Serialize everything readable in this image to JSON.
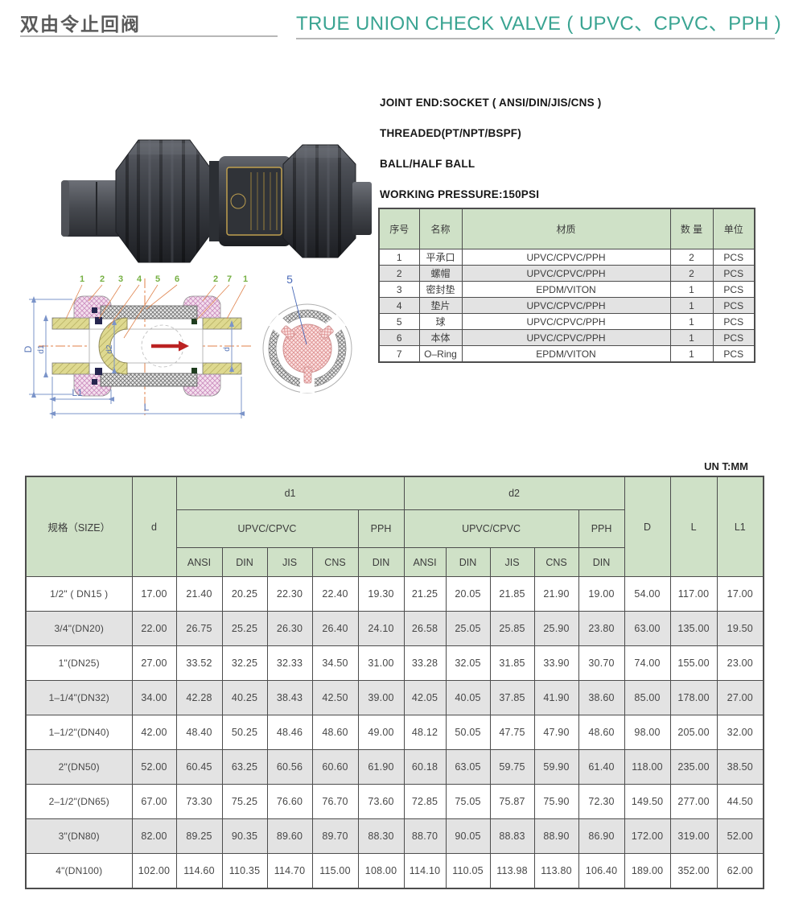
{
  "header": {
    "title_cn": "双由令止回阀",
    "title_en": "TRUE UNION CHECK VALVE ( UPVC、CPVC、PPH )"
  },
  "specs": {
    "line1": "JOINT END:SOCKET ( ANSI/DIN/JIS/CNS )",
    "line2": "THREADED(PT/NPT/BSPF)",
    "line3": "BALL/HALF BALL",
    "line4": "WORKING PRESSURE:150PSI"
  },
  "parts_table": {
    "headers": [
      "序号",
      "名称",
      "材质",
      "数 量",
      "单位"
    ],
    "rows": [
      [
        "1",
        "平承口",
        "UPVC/CPVC/PPH",
        "2",
        "PCS"
      ],
      [
        "2",
        "螺帽",
        "UPVC/CPVC/PPH",
        "2",
        "PCS"
      ],
      [
        "3",
        "密封垫",
        "EPDM/VITON",
        "1",
        "PCS"
      ],
      [
        "4",
        "垫片",
        "UPVC/CPVC/PPH",
        "1",
        "PCS"
      ],
      [
        "5",
        "球",
        "UPVC/CPVC/PPH",
        "1",
        "PCS"
      ],
      [
        "6",
        "本体",
        "UPVC/CPVC/PPH",
        "1",
        "PCS"
      ],
      [
        "7",
        "O–Ring",
        "EPDM/VITON",
        "1",
        "PCS"
      ]
    ]
  },
  "dimension_table": {
    "unit_note": "UN T:MM",
    "col_size": "规格（SIZE）",
    "col_d": "d",
    "group_d1": "d1",
    "group_d2": "d2",
    "material_upvc": "UPVC/CPVC",
    "material_pph": "PPH",
    "standards": [
      "ANSI",
      "DIN",
      "JIS",
      "CNS",
      "DIN"
    ],
    "col_D": "D",
    "col_L": "L",
    "col_L1": "L1",
    "rows": [
      {
        "size": "1/2\" ( DN15 )",
        "d": "17.00",
        "d1": [
          "21.40",
          "20.25",
          "22.30",
          "22.40",
          "19.30"
        ],
        "d2": [
          "21.25",
          "20.05",
          "21.85",
          "21.90",
          "19.00"
        ],
        "D": "54.00",
        "L": "117.00",
        "L1": "17.00"
      },
      {
        "size": "3/4\"(DN20)",
        "d": "22.00",
        "d1": [
          "26.75",
          "25.25",
          "26.30",
          "26.40",
          "24.10"
        ],
        "d2": [
          "26.58",
          "25.05",
          "25.85",
          "25.90",
          "23.80"
        ],
        "D": "63.00",
        "L": "135.00",
        "L1": "19.50"
      },
      {
        "size": "1\"(DN25)",
        "d": "27.00",
        "d1": [
          "33.52",
          "32.25",
          "32.33",
          "34.50",
          "31.00"
        ],
        "d2": [
          "33.28",
          "32.05",
          "31.85",
          "33.90",
          "30.70"
        ],
        "D": "74.00",
        "L": "155.00",
        "L1": "23.00"
      },
      {
        "size": "1–1/4\"(DN32)",
        "d": "34.00",
        "d1": [
          "42.28",
          "40.25",
          "38.43",
          "42.50",
          "39.00"
        ],
        "d2": [
          "42.05",
          "40.05",
          "37.85",
          "41.90",
          "38.60"
        ],
        "D": "85.00",
        "L": "178.00",
        "L1": "27.00"
      },
      {
        "size": "1–1/2\"(DN40)",
        "d": "42.00",
        "d1": [
          "48.40",
          "50.25",
          "48.46",
          "48.60",
          "49.00"
        ],
        "d2": [
          "48.12",
          "50.05",
          "47.75",
          "47.90",
          "48.60"
        ],
        "D": "98.00",
        "L": "205.00",
        "L1": "32.00"
      },
      {
        "size": "2\"(DN50)",
        "d": "52.00",
        "d1": [
          "60.45",
          "63.25",
          "60.56",
          "60.60",
          "61.90"
        ],
        "d2": [
          "60.18",
          "63.05",
          "59.75",
          "59.90",
          "61.40"
        ],
        "D": "118.00",
        "L": "235.00",
        "L1": "38.50"
      },
      {
        "size": "2–1/2\"(DN65)",
        "d": "67.00",
        "d1": [
          "73.30",
          "75.25",
          "76.60",
          "76.70",
          "73.60"
        ],
        "d2": [
          "72.85",
          "75.05",
          "75.87",
          "75.90",
          "72.30"
        ],
        "D": "149.50",
        "L": "277.00",
        "L1": "44.50"
      },
      {
        "size": "3\"(DN80)",
        "d": "82.00",
        "d1": [
          "89.25",
          "90.35",
          "89.60",
          "89.70",
          "88.30"
        ],
        "d2": [
          "88.70",
          "90.05",
          "88.83",
          "88.90",
          "86.90"
        ],
        "D": "172.00",
        "L": "319.00",
        "L1": "52.00"
      },
      {
        "size": "4\"(DN100)",
        "d": "102.00",
        "d1": [
          "114.60",
          "110.35",
          "114.70",
          "115.00",
          "108.00"
        ],
        "d2": [
          "114.10",
          "110.05",
          "113.98",
          "113.80",
          "106.40"
        ],
        "D": "189.00",
        "L": "352.00",
        "L1": "62.00"
      }
    ]
  },
  "drawing": {
    "callouts": [
      "1",
      "2",
      "3",
      "4",
      "5",
      "6",
      "2",
      "7",
      "1"
    ],
    "dim_D": "D",
    "dim_d1": "d1",
    "dim_d2": "d2",
    "dim_d": "d",
    "dim_L1": "L1",
    "dim_L": "L",
    "end_view_label": "5"
  },
  "colors": {
    "accent_teal": "#3aa492",
    "header_green": "#cfe1c7",
    "stripe_gray": "#e3e3e3",
    "border_gray": "#4d4d4d"
  }
}
